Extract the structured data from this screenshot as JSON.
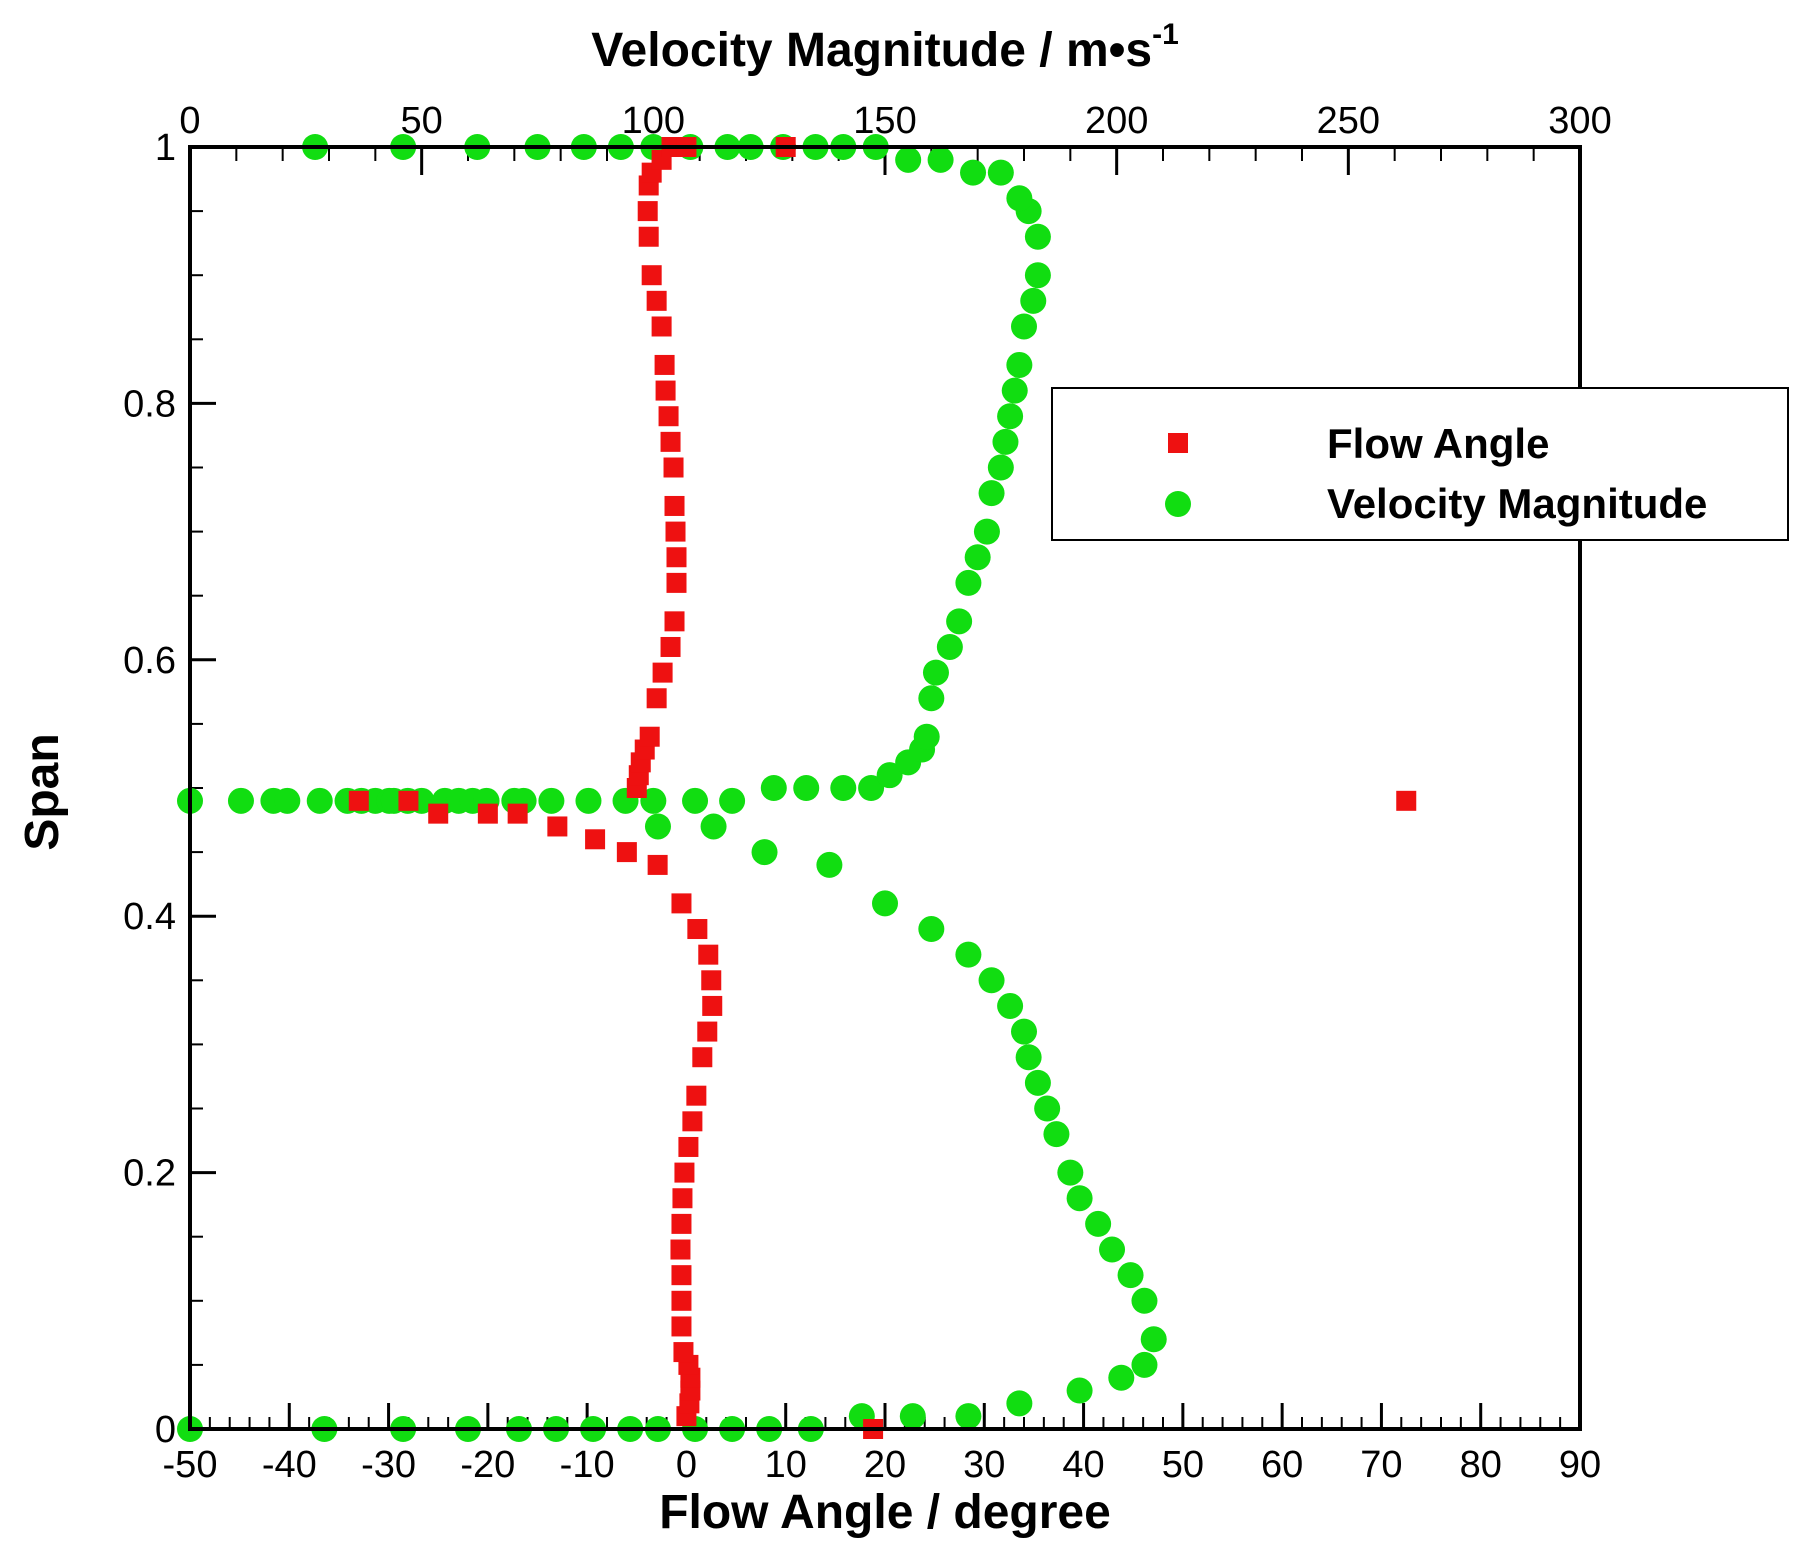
{
  "chart_data": {
    "type": "scatter",
    "bottom_axis": {
      "title": "Flow Angle / degree",
      "range": [
        -50,
        90
      ],
      "ticks": [
        -50,
        -40,
        -30,
        -20,
        -10,
        0,
        10,
        20,
        30,
        40,
        50,
        60,
        70,
        80,
        90
      ],
      "tick_labels": [
        "-50",
        "-40",
        "-30",
        "-20",
        "-10",
        "0",
        "10",
        "20",
        "30",
        "40",
        "50",
        "60",
        "70",
        "80",
        "90"
      ]
    },
    "top_axis": {
      "title": "Velocity Magnitude / m•s",
      "title_superscript": "-1",
      "range": [
        0,
        300
      ],
      "ticks": [
        0,
        50,
        100,
        150,
        200,
        250,
        300
      ],
      "tick_labels": [
        "0",
        "50",
        "100",
        "150",
        "200",
        "250",
        "300"
      ]
    },
    "left_axis": {
      "title": "Span",
      "range": [
        0,
        1
      ],
      "ticks": [
        0,
        0.2,
        0.4,
        0.6,
        0.8,
        1
      ],
      "tick_labels": [
        "0",
        "0.2",
        "0.4",
        "0.6",
        "0.8",
        "1"
      ]
    },
    "legend": {
      "position": "right",
      "entries": [
        "Flow Angle",
        "Velocity Magnitude"
      ]
    },
    "colors": {
      "flow_angle": "#ee1111",
      "velocity": "#11dd11"
    },
    "series": [
      {
        "name": "Flow Angle",
        "axis": "bottom",
        "marker": "square",
        "points": [
          [
            18.8,
            0.0
          ],
          [
            0.0,
            0.01
          ],
          [
            0.3,
            0.02
          ],
          [
            0.4,
            0.03
          ],
          [
            0.4,
            0.04
          ],
          [
            0.2,
            0.05
          ],
          [
            -0.3,
            0.06
          ],
          [
            -0.5,
            0.08
          ],
          [
            -0.5,
            0.1
          ],
          [
            -0.5,
            0.12
          ],
          [
            -0.6,
            0.14
          ],
          [
            -0.5,
            0.16
          ],
          [
            -0.4,
            0.18
          ],
          [
            -0.2,
            0.2
          ],
          [
            0.2,
            0.22
          ],
          [
            0.6,
            0.24
          ],
          [
            1.0,
            0.26
          ],
          [
            1.6,
            0.29
          ],
          [
            2.1,
            0.31
          ],
          [
            2.6,
            0.33
          ],
          [
            2.5,
            0.35
          ],
          [
            2.2,
            0.37
          ],
          [
            1.1,
            0.39
          ],
          [
            -0.5,
            0.41
          ],
          [
            -2.9,
            0.44
          ],
          [
            -6.0,
            0.45
          ],
          [
            -9.2,
            0.46
          ],
          [
            -13.0,
            0.47
          ],
          [
            -17.0,
            0.48
          ],
          [
            -20.0,
            0.48
          ],
          [
            -25.0,
            0.48
          ],
          [
            -28.0,
            0.49
          ],
          [
            -33.0,
            0.49
          ],
          [
            -5.0,
            0.5
          ],
          [
            -4.8,
            0.51
          ],
          [
            -4.6,
            0.52
          ],
          [
            -4.2,
            0.53
          ],
          [
            -3.7,
            0.54
          ],
          [
            -3.0,
            0.57
          ],
          [
            -2.4,
            0.59
          ],
          [
            -1.6,
            0.61
          ],
          [
            -1.2,
            0.63
          ],
          [
            -1.0,
            0.66
          ],
          [
            -1.0,
            0.68
          ],
          [
            -1.1,
            0.7
          ],
          [
            -1.2,
            0.72
          ],
          [
            -1.3,
            0.75
          ],
          [
            -1.6,
            0.77
          ],
          [
            -1.8,
            0.79
          ],
          [
            -2.1,
            0.81
          ],
          [
            -2.2,
            0.83
          ],
          [
            -2.5,
            0.86
          ],
          [
            -3.0,
            0.88
          ],
          [
            -3.5,
            0.9
          ],
          [
            -3.8,
            0.93
          ],
          [
            -3.9,
            0.95
          ],
          [
            -3.8,
            0.97
          ],
          [
            -3.5,
            0.98
          ],
          [
            -2.5,
            0.99
          ],
          [
            -1.5,
            1.0
          ],
          [
            0.0,
            1.0
          ],
          [
            10.0,
            1.0
          ],
          [
            72.5,
            0.49
          ]
        ]
      },
      {
        "name": "Velocity Magnitude",
        "axis": "top",
        "marker": "circle",
        "points": [
          [
            0,
            0.0
          ],
          [
            29,
            0.0
          ],
          [
            46,
            0.0
          ],
          [
            60,
            0.0
          ],
          [
            71,
            0.0
          ],
          [
            79,
            0.0
          ],
          [
            87,
            0.0
          ],
          [
            95,
            0.0
          ],
          [
            101,
            0.0
          ],
          [
            109,
            0.0
          ],
          [
            117,
            0.0
          ],
          [
            125,
            0.0
          ],
          [
            134,
            0.0
          ],
          [
            145,
            0.01
          ],
          [
            156,
            0.01
          ],
          [
            168,
            0.01
          ],
          [
            179,
            0.02
          ],
          [
            192,
            0.03
          ],
          [
            201,
            0.04
          ],
          [
            206,
            0.05
          ],
          [
            208,
            0.07
          ],
          [
            206,
            0.1
          ],
          [
            203,
            0.12
          ],
          [
            199,
            0.14
          ],
          [
            196,
            0.16
          ],
          [
            192,
            0.18
          ],
          [
            190,
            0.2
          ],
          [
            187,
            0.23
          ],
          [
            185,
            0.25
          ],
          [
            183,
            0.27
          ],
          [
            181,
            0.29
          ],
          [
            180,
            0.31
          ],
          [
            177,
            0.33
          ],
          [
            173,
            0.35
          ],
          [
            168,
            0.37
          ],
          [
            160,
            0.39
          ],
          [
            150,
            0.41
          ],
          [
            138,
            0.44
          ],
          [
            124,
            0.45
          ],
          [
            113,
            0.47
          ],
          [
            101,
            0.47
          ],
          [
            0,
            0.49
          ],
          [
            11,
            0.49
          ],
          [
            18,
            0.49
          ],
          [
            21,
            0.49
          ],
          [
            28,
            0.49
          ],
          [
            34,
            0.49
          ],
          [
            37,
            0.49
          ],
          [
            40,
            0.49
          ],
          [
            43,
            0.49
          ],
          [
            44,
            0.49
          ],
          [
            47,
            0.49
          ],
          [
            50,
            0.49
          ],
          [
            55,
            0.49
          ],
          [
            58,
            0.49
          ],
          [
            61,
            0.49
          ],
          [
            64,
            0.49
          ],
          [
            70,
            0.49
          ],
          [
            72,
            0.49
          ],
          [
            78,
            0.49
          ],
          [
            86,
            0.49
          ],
          [
            94,
            0.49
          ],
          [
            100,
            0.49
          ],
          [
            109,
            0.49
          ],
          [
            117,
            0.49
          ],
          [
            126,
            0.5
          ],
          [
            133,
            0.5
          ],
          [
            141,
            0.5
          ],
          [
            147,
            0.5
          ],
          [
            151,
            0.51
          ],
          [
            155,
            0.52
          ],
          [
            158,
            0.53
          ],
          [
            159,
            0.54
          ],
          [
            160,
            0.57
          ],
          [
            161,
            0.59
          ],
          [
            164,
            0.61
          ],
          [
            166,
            0.63
          ],
          [
            168,
            0.66
          ],
          [
            170,
            0.68
          ],
          [
            172,
            0.7
          ],
          [
            173,
            0.73
          ],
          [
            175,
            0.75
          ],
          [
            176,
            0.77
          ],
          [
            177,
            0.79
          ],
          [
            178,
            0.81
          ],
          [
            179,
            0.83
          ],
          [
            180,
            0.86
          ],
          [
            182,
            0.88
          ],
          [
            183,
            0.9
          ],
          [
            183,
            0.93
          ],
          [
            181,
            0.95
          ],
          [
            179,
            0.96
          ],
          [
            175,
            0.98
          ],
          [
            169,
            0.98
          ],
          [
            162,
            0.99
          ],
          [
            155,
            0.99
          ],
          [
            148,
            1.0
          ],
          [
            141,
            1.0
          ],
          [
            135,
            1.0
          ],
          [
            128,
            1.0
          ],
          [
            121,
            1.0
          ],
          [
            116,
            1.0
          ],
          [
            108,
            1.0
          ],
          [
            100,
            1.0
          ],
          [
            93,
            1.0
          ],
          [
            85,
            1.0
          ],
          [
            75,
            1.0
          ],
          [
            62,
            1.0
          ],
          [
            46,
            1.0
          ],
          [
            27,
            1.0
          ]
        ]
      }
    ]
  }
}
